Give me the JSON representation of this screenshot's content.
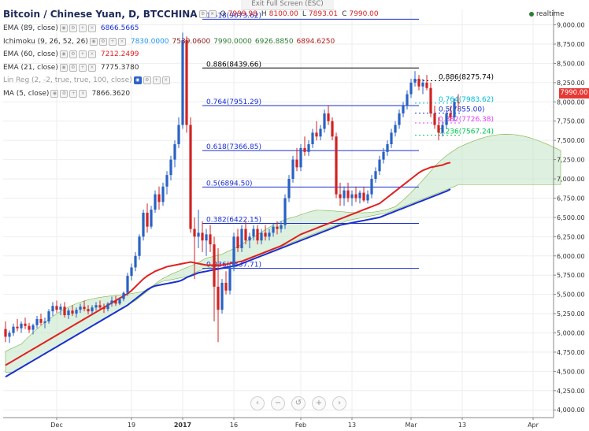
{
  "header": {
    "title": "Bitcoin / Chinese Yuan, D, BTCCHINA",
    "ohlc": {
      "o_label": "O",
      "o": "7999.98",
      "h_label": "H",
      "h": "8100.00",
      "l_label": "L",
      "l": "7893.01",
      "c_label": "C",
      "c": "7990.00"
    },
    "exit_fullscreen": "Exit Full Screen (ESC)",
    "realtime": "realtime",
    "last_price": "7990.00"
  },
  "indicators": [
    {
      "name": "EMA (89, close)",
      "value": "6866.5665",
      "color": "#1a2fd0"
    },
    {
      "name": "Ichimoku (9, 26, 52, 26)",
      "values": [
        "7830.0000",
        "7539.0600",
        "7990.0000",
        "6926.8850",
        "6894.6250"
      ],
      "colors": [
        "#2196f3",
        "#8b1a1a",
        "#2e7d32",
        "#2e7d32",
        "#b71c1c"
      ]
    },
    {
      "name": "EMA (60, close)",
      "value": "7212.2499",
      "color": "#e02020"
    },
    {
      "name": "EMA (21, close)",
      "value": "7775.3780",
      "color": "#333333"
    },
    {
      "name": "Lin Reg (2, -2, true, true, 100, close)",
      "value": "",
      "color": "#9a9a9a"
    },
    {
      "name": "MA (5, close)",
      "value": "7866.3620",
      "color": "#333333"
    }
  ],
  "nav_buttons": [
    "‹",
    "−",
    "↺",
    "+",
    "›"
  ],
  "chart_data": {
    "type": "candlestick",
    "title": "Bitcoin / Chinese Yuan, D, BTCCHINA",
    "y_axis": {
      "min": 3900,
      "max": 9200,
      "position": "right",
      "ticks": [
        "9,000.00",
        "8,750.00",
        "8,500.00",
        "8,250.00",
        "8,000.00",
        "7,750.00",
        "7,500.00",
        "7,250.00",
        "7,000.00",
        "6,750.00",
        "6,500.00",
        "6,250.00",
        "6,000.00",
        "5,750.00",
        "5,500.00",
        "5,250.00",
        "5,000.00",
        "4,750.00",
        "4,500.00",
        "4,250.00",
        "4,000.00"
      ],
      "tick_values": [
        9000,
        8750,
        8500,
        8250,
        8000,
        7750,
        7500,
        7250,
        7000,
        6750,
        6500,
        6250,
        6000,
        5750,
        5500,
        5250,
        5000,
        4750,
        4500,
        4250,
        4000
      ]
    },
    "x_axis": {
      "labels": [
        "Dec",
        "19",
        "2017",
        "16",
        "Feb",
        "13",
        "Mar",
        "13",
        "Apr"
      ],
      "label_index": [
        13,
        32,
        45,
        58,
        75,
        88,
        103,
        116,
        134
      ]
    },
    "fib_levels": [
      {
        "label": "1.618(9073.62)",
        "value": 9073.62,
        "color": "#1a2fd0"
      },
      {
        "label": "0.886(8439.66)",
        "value": 8439.66,
        "color": "#000000"
      },
      {
        "label": "0.764(7951.29)",
        "value": 7951.29,
        "color": "#1a2fd0"
      },
      {
        "label": "0.618(7366.85)",
        "value": 7366.85,
        "color": "#1a2fd0"
      },
      {
        "label": "0.5(6894.50)",
        "value": 6894.5,
        "color": "#1a2fd0"
      },
      {
        "label": "0.382(6422.15)",
        "value": 6422.15,
        "color": "#1a2fd0"
      },
      {
        "label": "0.236(5837.71)",
        "value": 5837.71,
        "color": "#1a2fd0"
      },
      {
        "label": "0.886(8275.74)",
        "value": 8275.74,
        "color": "#000000"
      },
      {
        "label": "0.764(7983.62)",
        "value": 7983.62,
        "color": "#00bcd4"
      },
      {
        "label": "0.5(7855.00)",
        "value": 7855.0,
        "color": "#1a2fd0"
      },
      {
        "label": "0.382(7726.38)",
        "value": 7726.38,
        "color": "#e040fb"
      },
      {
        "label": "0.236(7567.24)",
        "value": 7567.24,
        "color": "#00c853"
      }
    ],
    "candles": [
      [
        5050,
        5150,
        4880,
        4950
      ],
      [
        4950,
        5030,
        4870,
        5000
      ],
      [
        5000,
        5120,
        4960,
        5080
      ],
      [
        5080,
        5180,
        5020,
        5060
      ],
      [
        5060,
        5150,
        5000,
        5120
      ],
      [
        5120,
        5200,
        5050,
        5090
      ],
      [
        5090,
        5130,
        5000,
        5040
      ],
      [
        5040,
        5120,
        4980,
        5100
      ],
      [
        5100,
        5220,
        5060,
        5180
      ],
      [
        5180,
        5250,
        5100,
        5130
      ],
      [
        5130,
        5200,
        5060,
        5150
      ],
      [
        5150,
        5310,
        5120,
        5280
      ],
      [
        5280,
        5400,
        5220,
        5350
      ],
      [
        5350,
        5420,
        5260,
        5300
      ],
      [
        5300,
        5380,
        5230,
        5340
      ],
      [
        5340,
        5400,
        5200,
        5230
      ],
      [
        5230,
        5320,
        5180,
        5290
      ],
      [
        5290,
        5360,
        5220,
        5250
      ],
      [
        5250,
        5330,
        5200,
        5300
      ],
      [
        5300,
        5380,
        5260,
        5340
      ],
      [
        5340,
        5420,
        5280,
        5310
      ],
      [
        5310,
        5360,
        5240,
        5280
      ],
      [
        5280,
        5360,
        5240,
        5330
      ],
      [
        5330,
        5400,
        5290,
        5360
      ],
      [
        5360,
        5420,
        5300,
        5330
      ],
      [
        5330,
        5380,
        5260,
        5310
      ],
      [
        5310,
        5400,
        5280,
        5380
      ],
      [
        5380,
        5470,
        5340,
        5420
      ],
      [
        5420,
        5480,
        5350,
        5380
      ],
      [
        5380,
        5460,
        5360,
        5440
      ],
      [
        5440,
        5540,
        5410,
        5520
      ],
      [
        5520,
        5780,
        5480,
        5740
      ],
      [
        5740,
        5900,
        5680,
        5850
      ],
      [
        5850,
        6050,
        5800,
        6000
      ],
      [
        6000,
        6280,
        5950,
        6250
      ],
      [
        6250,
        6600,
        6200,
        6560
      ],
      [
        6560,
        6680,
        6300,
        6380
      ],
      [
        6380,
        6650,
        6350,
        6600
      ],
      [
        6600,
        6850,
        6560,
        6800
      ],
      [
        6800,
        6900,
        6600,
        6700
      ],
      [
        6700,
        6950,
        6650,
        6900
      ],
      [
        6900,
        7100,
        6800,
        7050
      ],
      [
        7050,
        7300,
        6980,
        7250
      ],
      [
        7250,
        7500,
        7150,
        7450
      ],
      [
        7450,
        7800,
        7400,
        7700
      ],
      [
        7700,
        8900,
        7650,
        8800
      ],
      [
        8800,
        8850,
        7600,
        7700
      ],
      [
        7700,
        7800,
        6300,
        6350
      ],
      [
        6350,
        6500,
        5700,
        6250
      ],
      [
        6250,
        6600,
        6100,
        6300
      ],
      [
        6300,
        6450,
        6050,
        6200
      ],
      [
        6200,
        6350,
        6000,
        6280
      ],
      [
        6280,
        6400,
        6050,
        6150
      ],
      [
        6150,
        6250,
        5150,
        5600
      ],
      [
        5600,
        6100,
        4880,
        5300
      ],
      [
        5300,
        5700,
        5250,
        5650
      ],
      [
        5650,
        5800,
        5500,
        5550
      ],
      [
        5550,
        5900,
        5500,
        5850
      ],
      [
        5850,
        6300,
        5800,
        6250
      ],
      [
        6250,
        6350,
        6050,
        6100
      ],
      [
        6100,
        6400,
        6050,
        6350
      ],
      [
        6350,
        6450,
        6150,
        6200
      ],
      [
        6200,
        6300,
        6100,
        6250
      ],
      [
        6250,
        6400,
        6200,
        6350
      ],
      [
        6350,
        6400,
        6150,
        6200
      ],
      [
        6200,
        6350,
        6150,
        6300
      ],
      [
        6300,
        6400,
        6200,
        6250
      ],
      [
        6250,
        6350,
        6200,
        6300
      ],
      [
        6300,
        6420,
        6250,
        6380
      ],
      [
        6380,
        6450,
        6280,
        6350
      ],
      [
        6350,
        6450,
        6300,
        6400
      ],
      [
        6400,
        6800,
        6350,
        6750
      ],
      [
        6750,
        7050,
        6700,
        7000
      ],
      [
        7000,
        7300,
        6950,
        7250
      ],
      [
        7250,
        7400,
        7100,
        7150
      ],
      [
        7150,
        7450,
        7100,
        7400
      ],
      [
        7400,
        7550,
        7300,
        7350
      ],
      [
        7350,
        7500,
        7300,
        7450
      ],
      [
        7450,
        7650,
        7400,
        7600
      ],
      [
        7600,
        7750,
        7500,
        7550
      ],
      [
        7550,
        7700,
        7500,
        7650
      ],
      [
        7650,
        7900,
        7600,
        7850
      ],
      [
        7850,
        7950,
        7700,
        7750
      ],
      [
        7750,
        7800,
        7500,
        7550
      ],
      [
        7550,
        7600,
        6750,
        6800
      ],
      [
        6800,
        6950,
        6650,
        6750
      ],
      [
        6750,
        6900,
        6650,
        6850
      ],
      [
        6850,
        6950,
        6700,
        6750
      ],
      [
        6750,
        6850,
        6650,
        6800
      ],
      [
        6800,
        6900,
        6700,
        6750
      ],
      [
        6750,
        6850,
        6680,
        6820
      ],
      [
        6820,
        6900,
        6700,
        6720
      ],
      [
        6720,
        6850,
        6680,
        6800
      ],
      [
        6800,
        7050,
        6750,
        7000
      ],
      [
        7000,
        7150,
        6950,
        7100
      ],
      [
        7100,
        7300,
        7050,
        7250
      ],
      [
        7250,
        7400,
        7200,
        7350
      ],
      [
        7350,
        7500,
        7300,
        7450
      ],
      [
        7450,
        7650,
        7400,
        7600
      ],
      [
        7600,
        7750,
        7550,
        7700
      ],
      [
        7700,
        7900,
        7650,
        7850
      ],
      [
        7850,
        8000,
        7800,
        7950
      ],
      [
        7950,
        8150,
        7900,
        8100
      ],
      [
        8100,
        8300,
        8050,
        8250
      ],
      [
        8250,
        8400,
        8200,
        8300
      ],
      [
        8300,
        8350,
        8150,
        8200
      ],
      [
        8200,
        8300,
        8100,
        8250
      ],
      [
        8250,
        8350,
        8150,
        8180
      ],
      [
        8180,
        8250,
        7800,
        7850
      ],
      [
        7850,
        7950,
        7650,
        7700
      ],
      [
        7700,
        7800,
        7500,
        7600
      ],
      [
        7600,
        7750,
        7550,
        7700
      ],
      [
        7700,
        7900,
        7650,
        7850
      ],
      [
        7850,
        7950,
        7750,
        7800
      ],
      [
        7800,
        8050,
        7750,
        8000
      ],
      [
        7999.98,
        8100,
        7893.01,
        7990
      ]
    ],
    "series_overlays": [
      {
        "name": "EMA (89, close)",
        "color": "#1a2fd0",
        "values_start": 0,
        "values": [
          4430,
          4460,
          4490,
          4520,
          4550,
          4580,
          4610,
          4640,
          4670,
          4700,
          4730,
          4760,
          4790,
          4820,
          4850,
          4880,
          4910,
          4940,
          4970,
          5000,
          5030,
          5060,
          5090,
          5120,
          5150,
          5180,
          5210,
          5240,
          5270,
          5300,
          5330,
          5360,
          5400,
          5440,
          5480,
          5520,
          5560,
          5590,
          5610,
          5620,
          5630,
          5640,
          5650,
          5660,
          5670,
          5690,
          5720,
          5740,
          5760,
          5780,
          5790,
          5800,
          5810,
          5820,
          5830,
          5840,
          5850,
          5860,
          5870,
          5880,
          5900,
          5920,
          5940,
          5960,
          5980,
          6000,
          6020,
          6040,
          6060,
          6080,
          6100,
          6120,
          6140,
          6160,
          6180,
          6200,
          6220,
          6240,
          6260,
          6280,
          6300,
          6320,
          6340,
          6360,
          6380,
          6400,
          6410,
          6420,
          6430,
          6440,
          6450,
          6460,
          6470,
          6480,
          6490,
          6500,
          6520,
          6540,
          6560,
          6580,
          6600,
          6620,
          6640,
          6660,
          6680,
          6700,
          6720,
          6740,
          6760,
          6780,
          6800,
          6820,
          6840,
          6866
        ]
      },
      {
        "name": "EMA (60, close)",
        "color": "#e02020",
        "values_start": 0,
        "values": [
          4580,
          4610,
          4640,
          4670,
          4700,
          4730,
          4760,
          4790,
          4820,
          4850,
          4880,
          4910,
          4940,
          4970,
          5000,
          5030,
          5060,
          5090,
          5120,
          5150,
          5180,
          5210,
          5240,
          5270,
          5300,
          5330,
          5360,
          5390,
          5420,
          5450,
          5480,
          5510,
          5550,
          5600,
          5650,
          5700,
          5740,
          5770,
          5800,
          5820,
          5840,
          5860,
          5870,
          5880,
          5890,
          5900,
          5910,
          5920,
          5910,
          5900,
          5890,
          5880,
          5880,
          5880,
          5880,
          5880,
          5890,
          5900,
          5910,
          5920,
          5930,
          5950,
          5970,
          5990,
          6010,
          6030,
          6050,
          6070,
          6090,
          6110,
          6130,
          6160,
          6190,
          6220,
          6250,
          6280,
          6300,
          6320,
          6340,
          6360,
          6380,
          6400,
          6420,
          6440,
          6460,
          6480,
          6500,
          6520,
          6540,
          6560,
          6580,
          6600,
          6620,
          6640,
          6660,
          6680,
          6720,
          6760,
          6800,
          6840,
          6880,
          6920,
          6960,
          7000,
          7040,
          7080,
          7110,
          7130,
          7150,
          7160,
          7170,
          7180,
          7200,
          7212
        ]
      }
    ]
  }
}
